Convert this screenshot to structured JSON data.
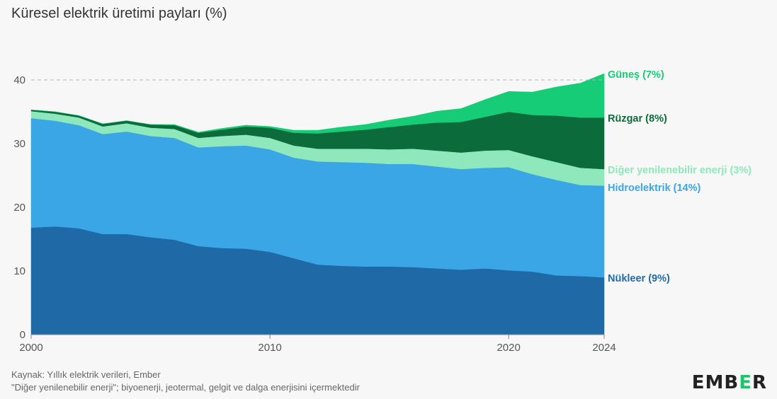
{
  "title": "Küresel elektrik üretimi payları (%)",
  "footer": {
    "source": "Kaynak: Yıllık elektrik verileri, Ember",
    "note": "\"Diğer yenilenebilir enerji\"; biyoenerji, jeotermal, gelgit ve dalga enerjisini içermektedir"
  },
  "logo": {
    "pre": "EMB",
    "mid": "E",
    "post": "R"
  },
  "chart_data": {
    "type": "area",
    "stacked": true,
    "title": "Küresel elektrik üretimi payları (%)",
    "x": [
      2000,
      2001,
      2002,
      2003,
      2004,
      2005,
      2006,
      2007,
      2008,
      2009,
      2010,
      2011,
      2012,
      2013,
      2014,
      2015,
      2016,
      2017,
      2018,
      2019,
      2020,
      2021,
      2022,
      2023,
      2024
    ],
    "x_ticks": [
      "2000",
      "2010",
      "2020",
      "2024"
    ],
    "y_ticks": [
      "0",
      "10",
      "20",
      "30",
      "40"
    ],
    "ylim": [
      0,
      45
    ],
    "reference_line": 40,
    "series": [
      {
        "name": "Nükleer",
        "label": "Nükleer (9%)",
        "color": "#1f6aa6",
        "values": [
          16.8,
          17.0,
          16.7,
          15.8,
          15.8,
          15.3,
          14.9,
          13.9,
          13.6,
          13.5,
          13.0,
          12.0,
          11.0,
          10.8,
          10.7,
          10.7,
          10.6,
          10.4,
          10.2,
          10.4,
          10.1,
          9.9,
          9.3,
          9.2,
          9.0
        ]
      },
      {
        "name": "Hidroelektrik",
        "label": "Hidroelektrik (14%)",
        "color": "#3aa6e6",
        "values": [
          17.2,
          16.6,
          16.2,
          15.7,
          16.1,
          15.9,
          16.0,
          15.5,
          16.0,
          16.2,
          16.1,
          15.8,
          16.2,
          16.3,
          16.3,
          16.1,
          16.2,
          16.0,
          15.8,
          15.8,
          16.2,
          15.3,
          15.0,
          14.3,
          14.4
        ]
      },
      {
        "name": "Diğer yenilenebilir enerji",
        "label": "Diğer yenilenebilir enerji (3%)",
        "color": "#8ee8bb",
        "values": [
          1.1,
          1.1,
          1.2,
          1.2,
          1.3,
          1.3,
          1.4,
          1.5,
          1.6,
          1.7,
          1.8,
          1.9,
          2.0,
          2.1,
          2.2,
          2.3,
          2.4,
          2.5,
          2.6,
          2.7,
          2.7,
          2.8,
          2.8,
          2.7,
          2.6
        ]
      },
      {
        "name": "Rüzgar",
        "label": "Rüzgar (8%)",
        "color": "#0b6b3a",
        "values": [
          0.2,
          0.3,
          0.3,
          0.4,
          0.4,
          0.5,
          0.6,
          0.8,
          1.0,
          1.3,
          1.6,
          2.0,
          2.4,
          2.7,
          3.0,
          3.5,
          3.8,
          4.4,
          4.8,
          5.3,
          6.0,
          6.5,
          7.3,
          7.9,
          8.1
        ]
      },
      {
        "name": "Güneş",
        "label": "Güneş (7%)",
        "color": "#17cc76",
        "values": [
          0.0,
          0.0,
          0.0,
          0.0,
          0.0,
          0.0,
          0.1,
          0.1,
          0.2,
          0.2,
          0.2,
          0.4,
          0.5,
          0.7,
          0.8,
          1.1,
          1.3,
          1.8,
          2.1,
          2.7,
          3.2,
          3.6,
          4.5,
          5.4,
          6.9
        ]
      }
    ]
  }
}
